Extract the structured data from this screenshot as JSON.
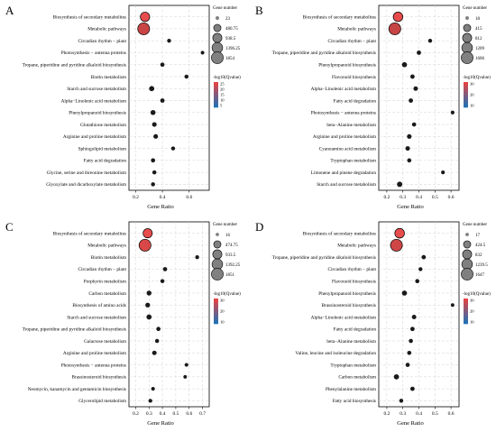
{
  "panels": [
    {
      "letter": "A",
      "x_label": "Gene Ratio",
      "size_legend_title": "Gene number",
      "size_legend_values": [
        "23",
        "480.75",
        "938.5",
        "1396.25",
        "1854"
      ],
      "color_legend_title": "-log10(Qvalue)",
      "color_legend_ticks": [
        "25",
        "20",
        "15",
        "10",
        "5"
      ]
    },
    {
      "letter": "B",
      "x_label": "Gene Ratio",
      "size_legend_title": "Gene number",
      "size_legend_values": [
        "18",
        "415",
        "812",
        "1209",
        "1606"
      ],
      "color_legend_title": "-log10(Qvalue)",
      "color_legend_ticks": [
        "30",
        "20",
        "10"
      ]
    },
    {
      "letter": "C",
      "x_label": "Gene Ratio",
      "size_legend_title": "Gene number",
      "size_legend_values": [
        "16",
        "474.75",
        "933.5",
        "1392.25",
        "1851"
      ],
      "color_legend_title": "-log10(Qvalue)",
      "color_legend_ticks": [
        "30",
        "20",
        "10"
      ]
    },
    {
      "letter": "D",
      "x_label": "Gene Ratio",
      "size_legend_title": "Gene number",
      "size_legend_values": [
        "17",
        "424.5",
        "832",
        "1239.5",
        "1647"
      ],
      "color_legend_title": "-log10(Qvalue)",
      "color_legend_ticks": [
        "30",
        "20",
        "10"
      ]
    }
  ],
  "chart_data": [
    {
      "type": "scatter",
      "title": "",
      "xlabel": "Gene Ratio",
      "xlim": [
        0.15,
        0.75
      ],
      "xticks": [
        0.2,
        0.4,
        0.6
      ],
      "categories": [
        "Biosynthesis of secondary metabolites",
        "Metabolic pathways",
        "Circadian rhythm − plant",
        "Photosynthesis − antenna proteins",
        "Tropane, piperidine and pyridine alkaloid biosynthesis",
        "Biotin metabolism",
        "Starch and sucrose metabolism",
        "Alpha−Linolenic acid metabolism",
        "Phenylpropanoid biosynthesis",
        "Glutathione metabolism",
        "Arginine and proline metabolism",
        "Sphingolipid metabolism",
        "Fatty acid degradation",
        "Glycine, serine and threonine metabolism",
        "Glyoxylate and dicarboxylate metabolism"
      ],
      "x": [
        0.27,
        0.26,
        0.45,
        0.7,
        0.4,
        0.58,
        0.32,
        0.4,
        0.33,
        0.34,
        0.35,
        0.48,
        0.33,
        0.34,
        0.33
      ],
      "gene_number": [
        1000,
        1854,
        40,
        30,
        60,
        50,
        150,
        70,
        130,
        90,
        90,
        40,
        60,
        50,
        50
      ],
      "neg_log10_q": [
        25,
        22,
        5,
        4,
        5,
        4,
        5,
        5,
        5,
        5,
        5,
        5,
        5,
        5,
        5
      ],
      "size_legend": [
        23,
        480.75,
        938.5,
        1396.25,
        1854
      ],
      "color_legend_range": [
        5,
        25
      ],
      "grid": true
    },
    {
      "type": "scatter",
      "title": "",
      "xlabel": "Gene Ratio",
      "xlim": [
        0.15,
        0.65
      ],
      "xticks": [
        0.2,
        0.3,
        0.4,
        0.5,
        0.6
      ],
      "categories": [
        "Biosynthesis of secondary metabolites",
        "Metabolic pathways",
        "Circadian rhythm − plant",
        "Tropane, piperidine and pyridine alkaloid biosynthesis",
        "Phenylpropanoid biosynthesis",
        "Flavonoid biosynthesis",
        "Alpha−Linolenic acid metabolism",
        "Fatty acid degradation",
        "Photosynthesis − antenna proteins",
        "beta−Alanine metabolism",
        "Arginine and proline metabolism",
        "Cyanoamino acid metabolism",
        "Tryptophan metabolism",
        "Limonene and pinene degradation",
        "Starch and sucrose metabolism"
      ],
      "x": [
        0.27,
        0.25,
        0.47,
        0.4,
        0.31,
        0.36,
        0.38,
        0.35,
        0.61,
        0.37,
        0.34,
        0.33,
        0.34,
        0.55,
        0.28
      ],
      "gene_number": [
        900,
        1606,
        40,
        60,
        120,
        60,
        70,
        60,
        30,
        50,
        80,
        70,
        50,
        30,
        140
      ],
      "neg_log10_q": [
        30,
        26,
        5,
        5,
        5,
        5,
        5,
        5,
        4,
        5,
        5,
        5,
        5,
        4,
        5
      ],
      "size_legend": [
        18,
        415,
        812,
        1209,
        1606
      ],
      "color_legend_range": [
        5,
        30
      ],
      "grid": true
    },
    {
      "type": "scatter",
      "title": "",
      "xlabel": "Gene Ratio",
      "xlim": [
        0.15,
        0.75
      ],
      "xticks": [
        0.2,
        0.3,
        0.4,
        0.5,
        0.6,
        0.7
      ],
      "categories": [
        "Biosynthesis of secondary metabolites",
        "Metabolic pathways",
        "Biotin metabolism",
        "Circadian rhythm − plant",
        "Porphyrin metabolism",
        "Carbon metabolism",
        "Biosynthesis of amino acids",
        "Starch and sucrose metabolism",
        "Tropane, piperidine and pyridine alkaloid biosynthesis",
        "Galactose metabolism",
        "Arginine and proline metabolism",
        "Photosynthesis − antenna proteins",
        "Brassinosteroid biosynthesis",
        "Neomycin, kanamycin and gentamicin biosynthesis",
        "Glycerolipid metabolism"
      ],
      "x": [
        0.29,
        0.27,
        0.66,
        0.42,
        0.4,
        0.3,
        0.29,
        0.3,
        0.37,
        0.36,
        0.34,
        0.58,
        0.57,
        0.33,
        0.31
      ],
      "gene_number": [
        950,
        1851,
        40,
        60,
        50,
        120,
        110,
        150,
        60,
        50,
        80,
        30,
        20,
        30,
        40
      ],
      "neg_log10_q": [
        30,
        28,
        4,
        5,
        5,
        5,
        5,
        5,
        5,
        5,
        5,
        4,
        4,
        5,
        5
      ],
      "size_legend": [
        16,
        474.75,
        933.5,
        1392.25,
        1851
      ],
      "color_legend_range": [
        5,
        30
      ],
      "grid": true
    },
    {
      "type": "scatter",
      "title": "",
      "xlabel": "Gene Ratio",
      "xlim": [
        0.15,
        0.65
      ],
      "xticks": [
        0.2,
        0.3,
        0.4,
        0.5,
        0.6
      ],
      "categories": [
        "Biosynthesis of secondary metabolites",
        "Metabolic pathways",
        "Tropane, piperidine and pyridine alkaloid biosynthesis",
        "Circadian rhythm − plant",
        "Flavonoid biosynthesis",
        "Phenylpropanoid biosynthesis",
        "Brassinosteroid biosynthesis",
        "Alpha−Linolenic acid metabolism",
        "Fatty acid degradation",
        "beta−Alanine metabolism",
        "Valine, leucine and isoleucine degradation",
        "Tryptophan metabolism",
        "Carbon metabolism",
        "Phenylalanine metabolism",
        "Fatty acid biosynthesis"
      ],
      "x": [
        0.28,
        0.26,
        0.43,
        0.41,
        0.39,
        0.31,
        0.61,
        0.37,
        0.36,
        0.35,
        0.34,
        0.33,
        0.26,
        0.36,
        0.29
      ],
      "gene_number": [
        950,
        1647,
        60,
        40,
        50,
        120,
        20,
        70,
        60,
        50,
        50,
        50,
        130,
        60,
        40
      ],
      "neg_log10_q": [
        30,
        27,
        5,
        5,
        5,
        5,
        4,
        5,
        5,
        5,
        5,
        5,
        5,
        5,
        5
      ],
      "size_legend": [
        17,
        424.5,
        832,
        1239.5,
        1647
      ],
      "color_legend_range": [
        5,
        30
      ],
      "grid": true
    }
  ]
}
